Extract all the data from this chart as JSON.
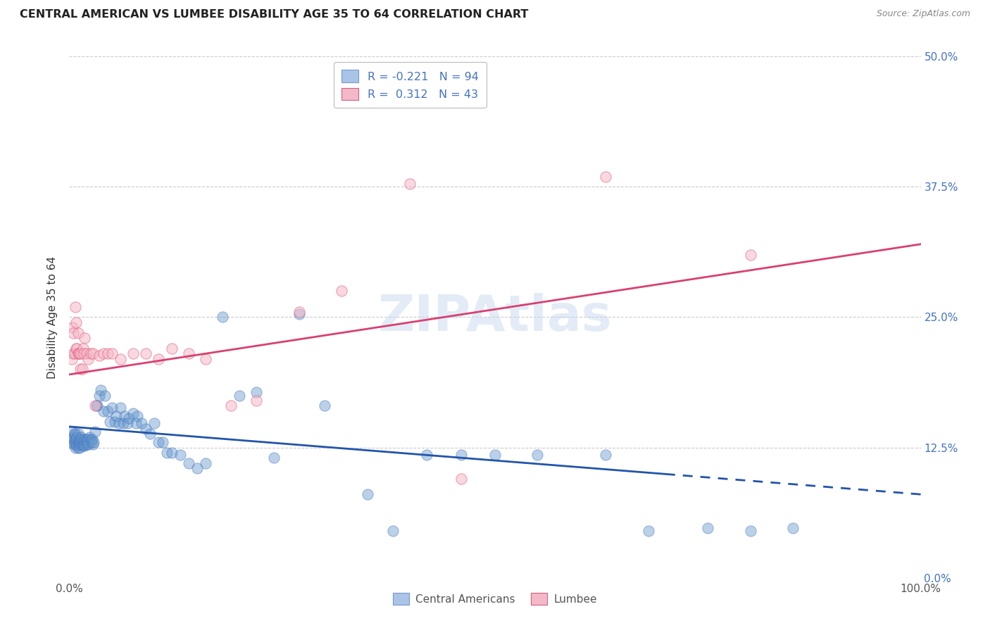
{
  "title": "CENTRAL AMERICAN VS LUMBEE DISABILITY AGE 35 TO 64 CORRELATION CHART",
  "source": "Source: ZipAtlas.com",
  "ylabel": "Disability Age 35 to 64",
  "background_color": "#ffffff",
  "watermark": "ZIPAtlas",
  "legend": {
    "blue_r": -0.221,
    "blue_n": 94,
    "pink_r": 0.312,
    "pink_n": 43,
    "label_blue": "Central Americans",
    "label_pink": "Lumbee"
  },
  "xlim": [
    0.0,
    1.0
  ],
  "ylim": [
    0.0,
    0.5
  ],
  "ytick_vals": [
    0.0,
    0.125,
    0.25,
    0.375,
    0.5
  ],
  "ytick_labels": [
    "0.0%",
    "12.5%",
    "25.0%",
    "37.5%",
    "50.0%"
  ],
  "blue_scatter": {
    "x": [
      0.003,
      0.003,
      0.004,
      0.005,
      0.005,
      0.006,
      0.006,
      0.007,
      0.007,
      0.007,
      0.008,
      0.008,
      0.009,
      0.009,
      0.01,
      0.01,
      0.01,
      0.011,
      0.011,
      0.012,
      0.012,
      0.013,
      0.013,
      0.014,
      0.014,
      0.015,
      0.015,
      0.016,
      0.016,
      0.017,
      0.018,
      0.018,
      0.019,
      0.02,
      0.02,
      0.021,
      0.022,
      0.023,
      0.024,
      0.025,
      0.026,
      0.027,
      0.028,
      0.029,
      0.03,
      0.032,
      0.033,
      0.035,
      0.037,
      0.04,
      0.042,
      0.045,
      0.048,
      0.05,
      0.053,
      0.055,
      0.058,
      0.06,
      0.063,
      0.065,
      0.068,
      0.07,
      0.075,
      0.078,
      0.08,
      0.085,
      0.09,
      0.095,
      0.1,
      0.105,
      0.11,
      0.115,
      0.12,
      0.13,
      0.14,
      0.15,
      0.16,
      0.18,
      0.2,
      0.22,
      0.24,
      0.27,
      0.3,
      0.35,
      0.38,
      0.42,
      0.46,
      0.5,
      0.55,
      0.63,
      0.68,
      0.75,
      0.8,
      0.85
    ],
    "y": [
      0.13,
      0.14,
      0.133,
      0.128,
      0.135,
      0.138,
      0.13,
      0.125,
      0.133,
      0.138,
      0.128,
      0.133,
      0.127,
      0.135,
      0.13,
      0.125,
      0.138,
      0.132,
      0.128,
      0.13,
      0.125,
      0.133,
      0.128,
      0.135,
      0.13,
      0.128,
      0.133,
      0.13,
      0.127,
      0.128,
      0.133,
      0.127,
      0.13,
      0.133,
      0.128,
      0.13,
      0.133,
      0.128,
      0.135,
      0.133,
      0.13,
      0.133,
      0.128,
      0.13,
      0.14,
      0.165,
      0.165,
      0.175,
      0.18,
      0.16,
      0.175,
      0.16,
      0.15,
      0.163,
      0.15,
      0.155,
      0.148,
      0.163,
      0.148,
      0.155,
      0.148,
      0.153,
      0.158,
      0.148,
      0.155,
      0.148,
      0.143,
      0.138,
      0.148,
      0.13,
      0.13,
      0.12,
      0.12,
      0.118,
      0.11,
      0.105,
      0.11,
      0.25,
      0.175,
      0.178,
      0.115,
      0.253,
      0.165,
      0.08,
      0.045,
      0.118,
      0.118,
      0.118,
      0.118,
      0.118,
      0.045,
      0.048,
      0.045,
      0.048
    ]
  },
  "pink_scatter": {
    "x": [
      0.003,
      0.004,
      0.005,
      0.005,
      0.006,
      0.007,
      0.008,
      0.008,
      0.009,
      0.01,
      0.01,
      0.011,
      0.012,
      0.013,
      0.014,
      0.015,
      0.016,
      0.017,
      0.018,
      0.02,
      0.022,
      0.025,
      0.028,
      0.03,
      0.035,
      0.04,
      0.045,
      0.05,
      0.06,
      0.075,
      0.09,
      0.105,
      0.12,
      0.14,
      0.16,
      0.19,
      0.22,
      0.27,
      0.32,
      0.4,
      0.46,
      0.63,
      0.8
    ],
    "y": [
      0.21,
      0.24,
      0.215,
      0.235,
      0.215,
      0.26,
      0.22,
      0.245,
      0.22,
      0.215,
      0.235,
      0.215,
      0.215,
      0.2,
      0.215,
      0.2,
      0.22,
      0.215,
      0.23,
      0.215,
      0.21,
      0.215,
      0.215,
      0.165,
      0.213,
      0.215,
      0.215,
      0.215,
      0.21,
      0.215,
      0.215,
      0.21,
      0.22,
      0.215,
      0.21,
      0.165,
      0.17,
      0.255,
      0.275,
      0.378,
      0.095,
      0.385,
      0.31
    ]
  },
  "blue_line": {
    "x_start": 0.0,
    "x_end": 1.0,
    "y_start": 0.145,
    "y_end": 0.08,
    "solid_to": 0.7
  },
  "pink_line": {
    "x_start": 0.0,
    "x_end": 1.0,
    "y_start": 0.195,
    "y_end": 0.32
  },
  "blue_dot_color": "#6699cc",
  "blue_dot_edge": "#4472c4",
  "pink_dot_color": "#f5b8c8",
  "pink_dot_edge": "#e06080",
  "blue_line_color": "#2255aa",
  "pink_line_color": "#d94070",
  "tick_label_color_right": "#4472c4",
  "grid_color": "#cccccc"
}
